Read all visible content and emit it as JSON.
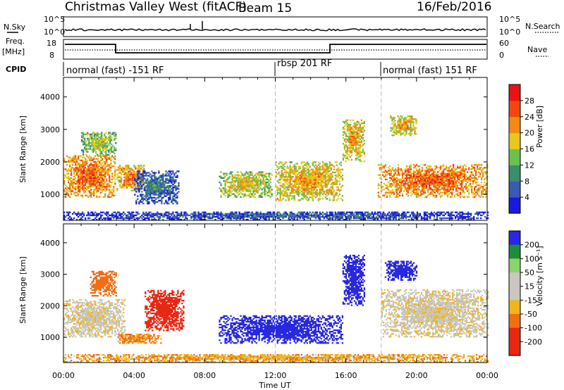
{
  "header": {
    "station": "Christmas Valley West (fitACF)",
    "beam": "Beam 15",
    "date": "16/Feb/2016"
  },
  "noise_panel": {
    "left_label": "N.Sky",
    "left_ticks": [
      "10^5",
      "10^0"
    ],
    "right_label": "N.Search",
    "right_ticks": [
      "10^5",
      "10^0"
    ]
  },
  "freq_panel": {
    "left_label_1": "Freq.",
    "left_label_2": "[MHz]",
    "left_ticks": [
      "18",
      "8"
    ],
    "right_label": "Nave",
    "right_ticks": [
      "60",
      "0"
    ]
  },
  "cpid": {
    "label": "CPID",
    "segments": [
      {
        "text": "normal (fast) -151 RF",
        "start_hour": 0
      },
      {
        "text": "rbsp 201 RF",
        "start_hour": 12
      },
      {
        "text": "normal (fast) 151 RF",
        "start_hour": 18
      }
    ]
  },
  "x_axis": {
    "label": "Time UT",
    "ticks": [
      "00:00",
      "04:00",
      "08:00",
      "12:00",
      "16:00",
      "20:00",
      "00:00"
    ]
  },
  "colors": {
    "power_scale": [
      "#1a1adc",
      "#3a5ab4",
      "#3c8c6e",
      "#6ec04e",
      "#e6c81e",
      "#f08c14",
      "#f04614",
      "#e61414"
    ],
    "velocity_scale": [
      "#2828dc",
      "#1e8c3c",
      "#8cd26e",
      "#c8c8c0",
      "#c8c8c0",
      "#f0b41e",
      "#f06e14",
      "#e62814"
    ]
  },
  "chart_data": [
    {
      "type": "heatmap",
      "title": "",
      "xlabel": "",
      "ylabel": "Slant Range [km]",
      "xlim": [
        0,
        24
      ],
      "ylim": [
        200,
        4600
      ],
      "yticks": [
        "1000",
        "2000",
        "3000",
        "4000"
      ],
      "colorbar": {
        "label": "Power [dB]",
        "ticks": [
          "4",
          "8",
          "12",
          "16",
          "20",
          "24",
          "28"
        ],
        "range": [
          0,
          32
        ]
      },
      "regions": [
        {
          "t0": 0.0,
          "t1": 2.9,
          "r0": 900,
          "r1": 2200,
          "level": 26
        },
        {
          "t0": 1.0,
          "t1": 3.0,
          "r0": 2200,
          "r1": 2900,
          "level": 18
        },
        {
          "t0": 3.0,
          "t1": 4.6,
          "r0": 1100,
          "r1": 1900,
          "level": 24
        },
        {
          "t0": 4.0,
          "t1": 6.5,
          "r0": 700,
          "r1": 1700,
          "level": 10
        },
        {
          "t0": 8.8,
          "t1": 11.8,
          "r0": 900,
          "r1": 1700,
          "level": 20
        },
        {
          "t0": 12.0,
          "t1": 15.8,
          "r0": 800,
          "r1": 2000,
          "level": 22
        },
        {
          "t0": 15.8,
          "t1": 17.0,
          "r0": 2000,
          "r1": 3300,
          "level": 22
        },
        {
          "t0": 18.5,
          "t1": 20.0,
          "r0": 2800,
          "r1": 3400,
          "level": 22
        },
        {
          "t0": 17.8,
          "t1": 24.0,
          "r0": 900,
          "r1": 1900,
          "level": 26
        },
        {
          "t0": 0.0,
          "t1": 24.0,
          "r0": 200,
          "r1": 450,
          "level": 8
        }
      ]
    },
    {
      "type": "heatmap",
      "title": "",
      "xlabel": "Time UT",
      "ylabel": "Slant Range [km]",
      "xlim": [
        0,
        24
      ],
      "ylim": [
        200,
        4600
      ],
      "yticks": [
        "1000",
        "2000",
        "3000",
        "4000"
      ],
      "colorbar": {
        "label": "Velocity [m s⁻¹]",
        "ticks": [
          "200",
          "100",
          "50",
          "15",
          "-15",
          "-50",
          "-100",
          "-200"
        ]
      },
      "regions": [
        {
          "t0": 0.0,
          "t1": 3.5,
          "r0": 1000,
          "r1": 2200,
          "velocity": 0
        },
        {
          "t0": 1.5,
          "t1": 3.0,
          "r0": 2300,
          "r1": 3100,
          "velocity": -80
        },
        {
          "t0": 4.6,
          "t1": 6.8,
          "r0": 1200,
          "r1": 2500,
          "velocity": -200
        },
        {
          "t0": 3.0,
          "t1": 5.5,
          "r0": 800,
          "r1": 1100,
          "velocity": -60
        },
        {
          "t0": 8.8,
          "t1": 15.8,
          "r0": 800,
          "r1": 1700,
          "velocity": 180
        },
        {
          "t0": 15.8,
          "t1": 17.0,
          "r0": 2000,
          "r1": 3600,
          "velocity": 200
        },
        {
          "t0": 18.2,
          "t1": 20.0,
          "r0": 2800,
          "r1": 3400,
          "velocity": 200
        },
        {
          "t0": 18.0,
          "t1": 24.0,
          "r0": 1000,
          "r1": 2500,
          "velocity": 0
        },
        {
          "t0": 0.0,
          "t1": 24.0,
          "r0": 200,
          "r1": 450,
          "velocity": -40
        }
      ]
    }
  ]
}
